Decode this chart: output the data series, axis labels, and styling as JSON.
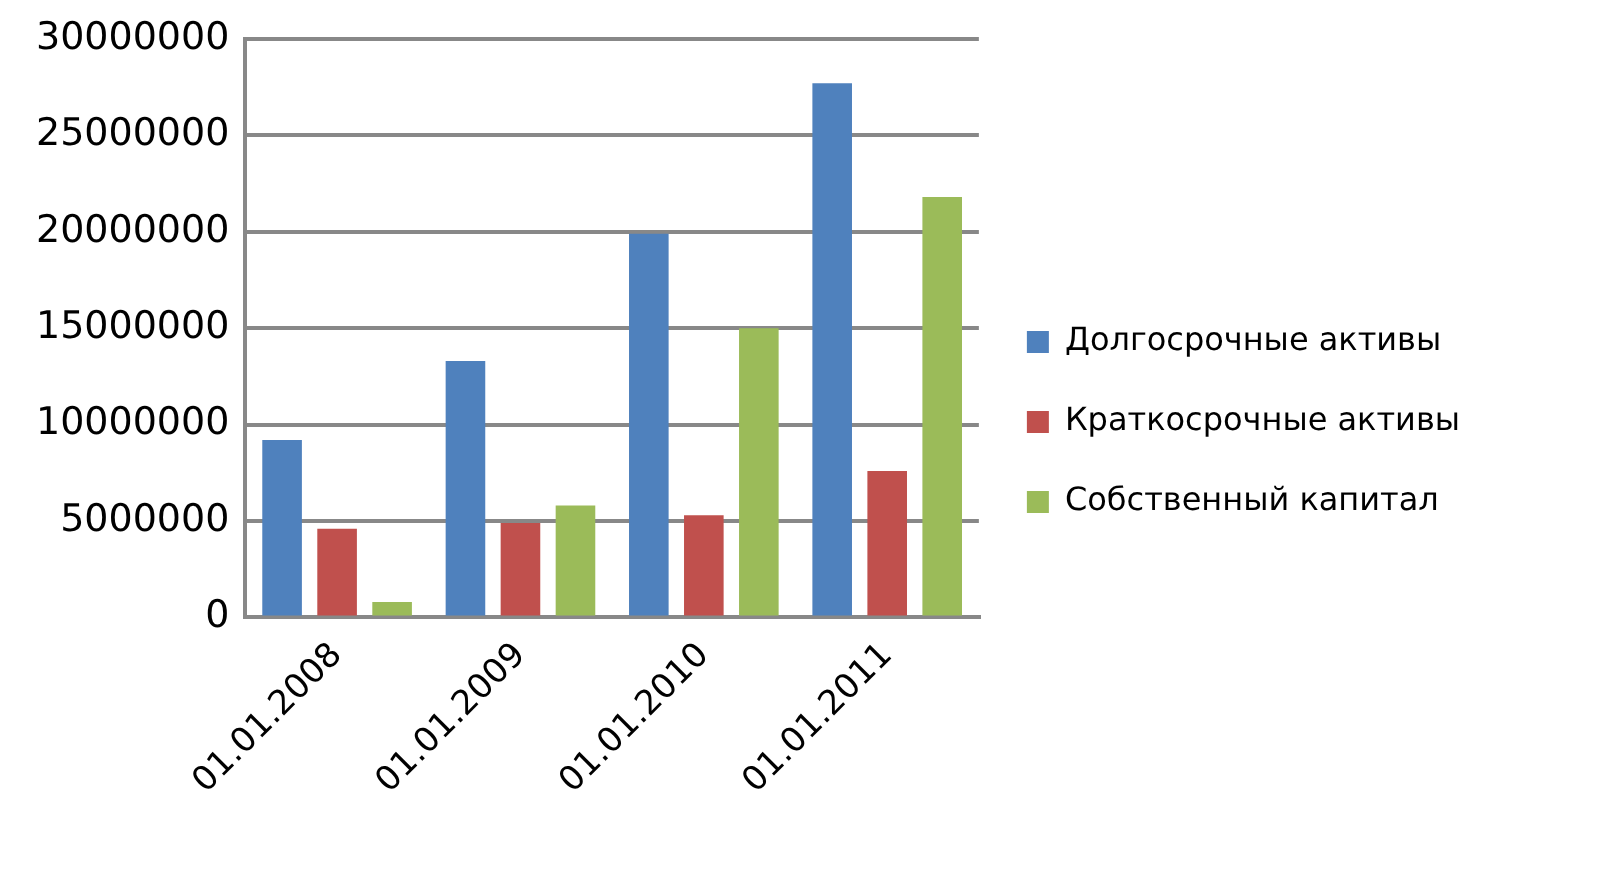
{
  "chart_data": {
    "type": "bar",
    "categories": [
      "01.01.2008",
      "01.01.2009",
      "01.01.2010",
      "01.01.2011"
    ],
    "series": [
      {
        "name": "Долгосрочные активы",
        "color": "#4f81bd",
        "values": [
          9200000,
          13300000,
          19900000,
          27700000
        ]
      },
      {
        "name": "Краткосрочные активы",
        "color": "#c0504d",
        "values": [
          4600000,
          4900000,
          5300000,
          7600000
        ]
      },
      {
        "name": "Собственный капитал",
        "color": "#9bbb59",
        "values": [
          800000,
          5800000,
          15000000,
          21800000
        ]
      }
    ],
    "ylim": [
      0,
      30000000
    ],
    "yticks": [
      0,
      5000000,
      10000000,
      15000000,
      20000000,
      25000000,
      30000000
    ],
    "grid": "y",
    "legend": "right"
  }
}
